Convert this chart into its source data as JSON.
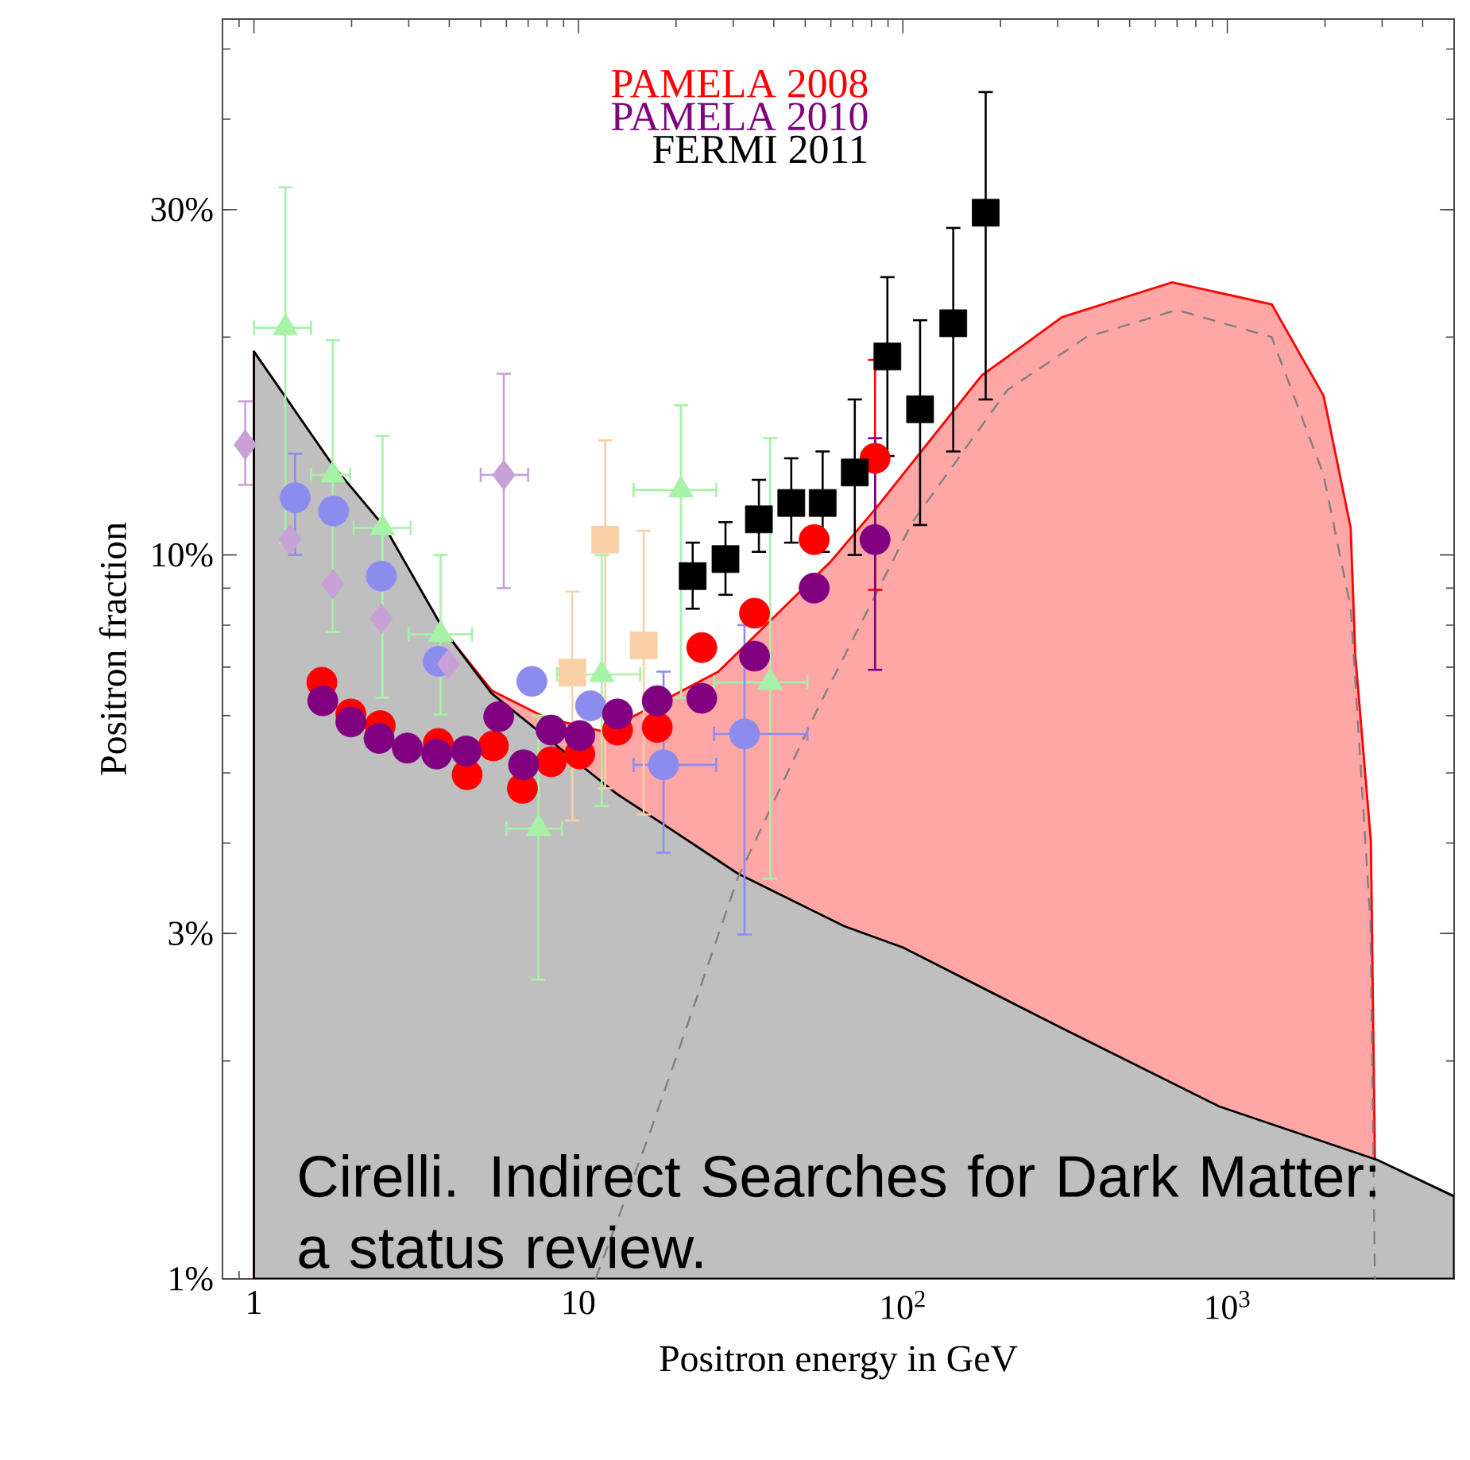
{
  "chart_data": {
    "type": "scatter",
    "xlabel": "Positron energy in GeV",
    "ylabel": "Positron fraction",
    "xlim": [
      0.8,
      5000
    ],
    "ylim": [
      1,
      55
    ],
    "log": "xy",
    "xticks": [
      1,
      10,
      {
        "value": 100,
        "label": "10$^{2}$"
      },
      {
        "value": 1000,
        "label": "10$^{3}$"
      }
    ],
    "yticks": [
      {
        "value": 1,
        "label": "1%"
      },
      {
        "value": 3,
        "label": "3%"
      },
      {
        "value": 10,
        "label": "10%"
      },
      {
        "value": 30,
        "label": "30%"
      }
    ],
    "legend": "top",
    "annotations": [
      "Cirelli. Indirect Searches for Dark Matter: a status review."
    ],
    "series": [
      {
        "type": "area",
        "color": "#ffa6a6",
        "x": [
          1,
          1.75,
          2.54,
          3.85,
          5.4,
          8,
          12,
          27,
          60,
          82.6,
          175,
          309,
          675,
          1370,
          1980,
          2400,
          2480,
          2770,
          2850,
          5000
        ],
        "values": [
          19.1,
          13.3,
          10.9,
          7.87,
          6.5,
          5.95,
          5.7,
          6.9,
          9.8,
          11.6,
          17.7,
          21.3,
          23.8,
          22.2,
          16.6,
          10.9,
          7.26,
          4.02,
          1.46,
          1.3
        ]
      },
      {
        "type": "area",
        "color": "#bfbfbf",
        "x": [
          1,
          1.75,
          2.54,
          3.85,
          5.4,
          13.1,
          18.5,
          31,
          66,
          100,
          309,
          945,
          2900,
          5000
        ],
        "values": [
          19.1,
          13.3,
          10.9,
          7.87,
          6.44,
          4.68,
          4.23,
          3.63,
          3.07,
          2.87,
          2.22,
          1.73,
          1.46,
          1.3
        ]
      },
      {
        "type": "line",
        "line_style": "dashed",
        "color": "#808080",
        "x": [
          11.3,
          16.6,
          21.5,
          31,
          54.6,
          107,
          210,
          368,
          700,
          1370,
          1980,
          2400,
          2760,
          2850
        ],
        "values": [
          1.0,
          1.59,
          2.22,
          3.58,
          6.13,
          11.1,
          16.9,
          20.0,
          21.8,
          20.0,
          12.9,
          8.45,
          3.12,
          1.0
        ]
      },
      {
        "marker": "triangle",
        "color": "#a6f2a6",
        "x": [
          1.25,
          1.75,
          2.49,
          3.76,
          7.53,
          11.8,
          20.7,
          39.0
        ],
        "values": [
          20.6,
          12.9,
          10.9,
          7.77,
          4.19,
          6.84,
          12.3,
          6.67
        ],
        "errors": [
          [
            10.4,
            32.2
          ],
          [
            7.83,
            19.8
          ],
          [
            6.35,
            14.6
          ],
          [
            6.02,
            10.0
          ],
          [
            2.59,
            6.0
          ],
          [
            4.5,
            10.0
          ],
          [
            6.35,
            16.1
          ],
          [
            3.57,
            14.5
          ]
        ],
        "xerrors": [
          [
            1.0,
            1.5
          ],
          [
            1.5,
            1.98
          ],
          [
            2.03,
            3.04
          ],
          [
            3.0,
            4.7
          ],
          [
            6.0,
            8.9
          ],
          [
            8.6,
            15.5
          ],
          [
            14.8,
            26.6
          ],
          [
            26.2,
            50.8
          ]
        ]
      },
      {
        "marker": "circle",
        "color": "#8c8cee",
        "x": [
          1.34,
          1.76,
          2.47,
          3.7,
          7.19,
          10.9,
          18.3,
          32.5
        ],
        "values": [
          12.0,
          11.5,
          9.35,
          7.13,
          6.69,
          6.19,
          5.13,
          5.66
        ],
        "errors": [
          [
            10.0,
            13.8
          ],
          null,
          null,
          null,
          null,
          null,
          [
            3.88,
            6.9
          ],
          [
            2.99,
            8.0
          ]
        ],
        "xerrors": [
          null,
          null,
          null,
          null,
          null,
          null,
          [
            14.8,
            26.6
          ],
          [
            26.2,
            50.8
          ]
        ]
      },
      {
        "marker": "diamond",
        "color": "#c8a2d6",
        "x": [
          0.94,
          1.29,
          1.75,
          2.47,
          3.98,
          5.89
        ],
        "values": [
          14.2,
          10.5,
          9.11,
          8.17,
          7.07,
          12.9
        ],
        "errors": [
          [
            12.5,
            16.3
          ],
          null,
          null,
          null,
          null,
          [
            9.0,
            17.8
          ]
        ],
        "xerrors": [
          null,
          null,
          null,
          null,
          null,
          [
            5.0,
            7.0
          ]
        ]
      },
      {
        "marker": "square",
        "color": "#f9cfa5",
        "x": [
          9.58,
          12.1,
          15.9
        ],
        "values": [
          6.88,
          10.5,
          7.5
        ],
        "errors": [
          [
            4.3,
            8.9
          ],
          [
            4.76,
            14.4
          ],
          [
            4.38,
            10.8
          ]
        ]
      },
      {
        "name": "PAMELA 2008",
        "marker": "circle",
        "color": "#ff0000",
        "x": [
          1.62,
          1.99,
          2.45,
          3.7,
          4.54,
          5.47,
          6.72,
          8.24,
          10.1,
          13.2,
          17.5,
          24.0,
          34.9,
          53.3,
          82.1
        ],
        "values": [
          6.67,
          6.03,
          5.81,
          5.49,
          4.97,
          5.45,
          4.76,
          5.18,
          5.31,
          5.73,
          5.78,
          7.45,
          8.31,
          10.5,
          13.6
        ],
        "errors": [
          null,
          null,
          null,
          null,
          null,
          null,
          null,
          null,
          null,
          null,
          null,
          null,
          null,
          null,
          [
            8.95,
            18.6
          ]
        ]
      },
      {
        "name": "PAMELA 2010",
        "marker": "circle",
        "color": "#800080",
        "x": [
          1.63,
          1.99,
          2.43,
          2.97,
          3.66,
          4.51,
          5.68,
          6.78,
          8.24,
          10.1,
          13.2,
          17.5,
          24.0,
          34.9,
          53.3,
          82.1
        ],
        "values": [
          6.29,
          5.88,
          5.58,
          5.41,
          5.31,
          5.36,
          5.98,
          5.13,
          5.73,
          5.63,
          6.03,
          6.29,
          6.34,
          7.25,
          9.0,
          10.5
        ],
        "errors": [
          null,
          null,
          null,
          null,
          null,
          null,
          null,
          null,
          null,
          null,
          null,
          null,
          null,
          null,
          null,
          [
            6.94,
            14.5
          ]
        ]
      },
      {
        "name": "FERMI 2011",
        "marker": "square",
        "color": "#000000",
        "x": [
          22.5,
          28.4,
          36.0,
          45.3,
          56.6,
          71.1,
          89.6,
          113,
          143,
          180
        ],
        "values": [
          9.35,
          9.87,
          11.2,
          11.8,
          11.8,
          13.0,
          18.8,
          15.9,
          20.9,
          29.7
        ],
        "errors": [
          [
            8.43,
            10.4
          ],
          [
            8.81,
            11.1
          ],
          [
            10.1,
            12.7
          ],
          [
            10.4,
            13.6
          ],
          [
            10.1,
            13.9
          ],
          [
            10.0,
            16.4
          ],
          [
            13.7,
            24.2
          ],
          [
            11.0,
            21.1
          ],
          [
            13.9,
            28.3
          ],
          [
            16.4,
            43.6
          ]
        ]
      }
    ]
  }
}
